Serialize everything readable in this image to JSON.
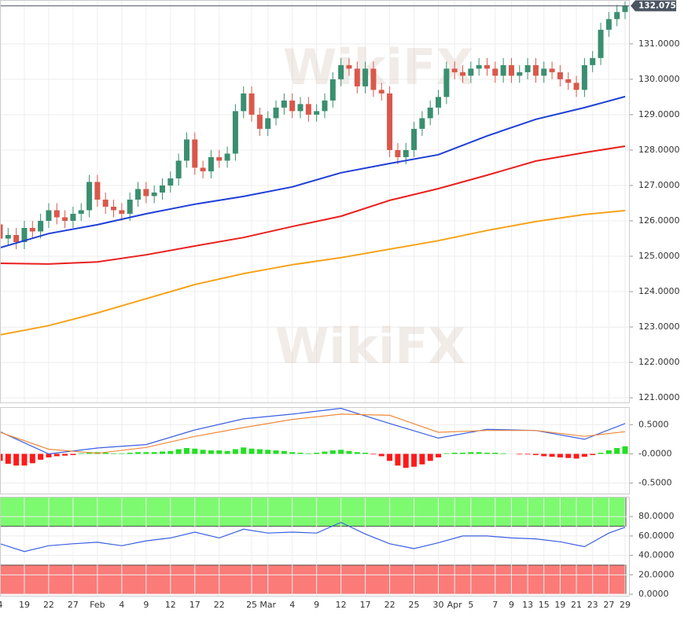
{
  "chart_data": [
    {
      "type": "candlestick",
      "open": [
        125.9,
        125.5,
        125.6,
        125.4,
        125.8,
        125.7,
        126.0,
        126.3,
        126.1,
        126.0,
        126.2,
        126.3,
        127.1,
        126.6,
        126.4,
        126.3,
        126.2,
        126.6,
        126.9,
        126.7,
        126.8,
        127.0,
        127.2,
        127.7,
        128.3,
        127.5,
        127.4,
        127.8,
        127.7,
        127.9,
        129.1,
        129.6,
        129.0,
        128.6,
        128.9,
        129.2,
        129.4,
        129.1,
        129.3,
        129.0,
        129.1,
        129.4,
        130.0,
        130.4,
        130.3,
        129.8,
        130.3,
        129.7,
        129.6,
        128.0,
        127.8,
        128.0,
        128.6,
        128.9,
        129.2,
        129.5,
        130.3,
        130.2,
        130.1,
        130.3,
        130.4,
        130.3,
        130.1,
        130.4,
        130.1,
        130.2,
        130.4,
        130.1,
        130.3,
        130.2,
        130.0,
        129.9,
        129.7,
        130.4,
        130.6,
        131.4,
        131.7,
        131.9
      ],
      "high": [
        126.1,
        125.8,
        125.8,
        126.0,
        126.0,
        126.2,
        126.5,
        126.5,
        126.3,
        126.4,
        126.5,
        127.3,
        127.3,
        126.8,
        126.6,
        126.5,
        126.8,
        127.1,
        127.1,
        127.0,
        127.2,
        127.4,
        127.9,
        128.5,
        128.5,
        127.7,
        128.0,
        128.0,
        128.1,
        129.3,
        129.8,
        129.8,
        129.2,
        129.1,
        129.4,
        129.6,
        129.6,
        129.5,
        129.5,
        129.3,
        129.6,
        130.2,
        130.6,
        130.6,
        130.5,
        130.5,
        130.5,
        129.9,
        129.8,
        128.2,
        128.2,
        128.8,
        129.1,
        129.4,
        129.7,
        130.5,
        130.5,
        130.4,
        130.5,
        130.6,
        130.6,
        130.5,
        130.6,
        130.6,
        130.4,
        130.6,
        130.6,
        130.5,
        130.5,
        130.4,
        130.2,
        130.1,
        130.6,
        130.8,
        131.6,
        131.9,
        132.1,
        132.2
      ],
      "low": [
        125.3,
        125.3,
        125.2,
        125.2,
        125.5,
        125.5,
        125.8,
        125.9,
        125.8,
        125.8,
        126.0,
        126.1,
        126.4,
        126.2,
        126.1,
        126.0,
        126.0,
        126.4,
        126.5,
        126.5,
        126.6,
        126.8,
        127.0,
        127.5,
        127.3,
        127.2,
        127.2,
        127.5,
        127.5,
        127.7,
        128.9,
        128.8,
        128.4,
        128.4,
        128.7,
        129.0,
        128.9,
        128.9,
        128.8,
        128.8,
        128.9,
        129.2,
        129.8,
        130.1,
        129.6,
        129.6,
        129.5,
        129.4,
        127.8,
        127.6,
        127.6,
        127.8,
        128.4,
        128.7,
        129.0,
        129.3,
        130.0,
        129.9,
        129.9,
        130.1,
        130.1,
        129.9,
        129.9,
        129.9,
        129.9,
        130.0,
        129.9,
        129.9,
        130.0,
        129.8,
        129.7,
        129.5,
        129.5,
        130.2,
        130.4,
        131.2,
        131.5,
        131.7
      ],
      "close": [
        125.5,
        125.6,
        125.4,
        125.8,
        125.7,
        126.0,
        126.3,
        126.1,
        126.0,
        126.2,
        126.3,
        127.1,
        126.6,
        126.4,
        126.3,
        126.2,
        126.6,
        126.9,
        126.7,
        126.8,
        127.0,
        127.2,
        127.7,
        128.3,
        127.5,
        127.4,
        127.8,
        127.7,
        127.9,
        129.1,
        129.6,
        129.0,
        128.6,
        128.9,
        129.2,
        129.4,
        129.1,
        129.3,
        129.0,
        129.1,
        129.4,
        130.0,
        130.4,
        130.3,
        129.8,
        130.3,
        129.7,
        129.6,
        128.0,
        127.8,
        128.0,
        128.6,
        128.9,
        129.2,
        129.5,
        130.3,
        130.2,
        130.1,
        130.3,
        130.4,
        130.3,
        130.1,
        130.4,
        130.1,
        130.2,
        130.4,
        130.1,
        130.3,
        130.2,
        130.0,
        129.9,
        129.7,
        130.4,
        130.6,
        131.4,
        131.7,
        131.9,
        132.07
      ],
      "up_color": "#3a8f70",
      "down_color": "#d9584b",
      "series": [
        {
          "color": "#1f3fd6",
          "x": [
            0,
            6,
            12,
            18,
            24,
            30,
            36,
            42,
            48,
            54,
            60,
            66,
            72,
            77
          ],
          "values": [
            125.24,
            125.64,
            125.89,
            126.2,
            126.47,
            126.69,
            126.96,
            127.36,
            127.62,
            127.87,
            128.4,
            128.87,
            129.2,
            129.51
          ]
        },
        {
          "color": "#e8201e",
          "x": [
            0,
            6,
            12,
            18,
            24,
            30,
            36,
            42,
            48,
            54,
            60,
            66,
            72,
            77
          ],
          "values": [
            124.8,
            124.78,
            124.84,
            125.04,
            125.29,
            125.53,
            125.84,
            126.13,
            126.58,
            126.91,
            127.29,
            127.69,
            127.93,
            128.11
          ]
        },
        {
          "color": "#f5a31a",
          "x": [
            0,
            6,
            12,
            18,
            24,
            30,
            36,
            42,
            48,
            54,
            60,
            66,
            72,
            77
          ],
          "values": [
            122.78,
            123.04,
            123.4,
            123.8,
            124.2,
            124.51,
            124.76,
            124.96,
            125.2,
            125.44,
            125.73,
            125.98,
            126.18,
            126.29
          ]
        }
      ],
      "ylim": [
        120.87,
        132.24
      ],
      "yticks": [
        {
          "value": 121,
          "label": "121.0000"
        },
        {
          "value": 122,
          "label": "122.0000"
        },
        {
          "value": 123,
          "label": "123.0000"
        },
        {
          "value": 124,
          "label": "124.0000"
        },
        {
          "value": 125,
          "label": "125.0000"
        },
        {
          "value": 126,
          "label": "126.0000"
        },
        {
          "value": 127,
          "label": "127.0000"
        },
        {
          "value": 128,
          "label": "128.0000"
        },
        {
          "value": 129,
          "label": "129.0000"
        },
        {
          "value": 130,
          "label": "130.0000"
        },
        {
          "value": 131,
          "label": "131.0000"
        }
      ],
      "last_price": {
        "value": 132.075,
        "label": "132.0750"
      },
      "grid": true,
      "watermark": "WikiFX"
    },
    {
      "type": "macd",
      "histogram": [
        -0.12,
        -0.17,
        -0.2,
        -0.2,
        -0.16,
        -0.1,
        -0.06,
        -0.04,
        -0.03,
        -0.02,
        0.01,
        0.03,
        0.03,
        0.02,
        0.01,
        0.01,
        0.02,
        0.03,
        0.03,
        0.03,
        0.04,
        0.05,
        0.08,
        0.1,
        0.09,
        0.07,
        0.06,
        0.06,
        0.05,
        0.08,
        0.11,
        0.09,
        0.08,
        0.07,
        0.06,
        0.05,
        0.03,
        0.02,
        0.01,
        0.02,
        0.04,
        0.06,
        0.07,
        0.05,
        0.03,
        0.02,
        -0.01,
        -0.04,
        -0.12,
        -0.2,
        -0.24,
        -0.22,
        -0.18,
        -0.12,
        -0.06,
        0.01,
        0.02,
        0.02,
        0.03,
        0.03,
        0.02,
        0.02,
        0.01,
        0.0,
        -0.01,
        -0.01,
        -0.02,
        -0.04,
        -0.05,
        -0.06,
        -0.07,
        -0.08,
        -0.05,
        -0.02,
        0.02,
        0.06,
        0.1,
        0.13
      ],
      "positive_color": "#22e022",
      "negative_color": "#ff1a1a",
      "series": [
        {
          "color": "#3a5fe0",
          "x": [
            0,
            6,
            12,
            18,
            24,
            30,
            36,
            42,
            48,
            54,
            60,
            66,
            72,
            77
          ],
          "values": [
            0.38,
            0.0,
            0.1,
            0.16,
            0.41,
            0.6,
            0.68,
            0.78,
            0.52,
            0.27,
            0.42,
            0.4,
            0.25,
            0.52
          ]
        },
        {
          "color": "#f08a3c",
          "x": [
            0,
            6,
            12,
            18,
            24,
            30,
            36,
            42,
            48,
            54,
            60,
            66,
            72,
            77
          ],
          "values": [
            0.37,
            0.08,
            0.01,
            0.11,
            0.3,
            0.45,
            0.59,
            0.68,
            0.66,
            0.37,
            0.4,
            0.4,
            0.3,
            0.38
          ]
        }
      ],
      "ylim": [
        -0.68,
        0.8
      ],
      "yticks": [
        {
          "value": 0.5,
          "label": "0.5000"
        },
        {
          "value": 0,
          "label": "-0.0000"
        },
        {
          "value": -0.5,
          "label": "-0.5000"
        }
      ]
    },
    {
      "type": "rsi",
      "series": [
        {
          "color": "#3a5fe0",
          "x": [
            0,
            3,
            6,
            9,
            12,
            15,
            18,
            21,
            24,
            27,
            30,
            33,
            36,
            39,
            42,
            45,
            48,
            51,
            54,
            57,
            60,
            63,
            66,
            69,
            72,
            75,
            77
          ],
          "values": [
            52,
            44,
            50,
            52,
            53.5,
            50,
            55,
            58,
            64,
            58,
            67,
            63,
            64,
            63,
            74,
            62,
            52,
            47,
            53,
            60,
            60,
            58,
            57,
            54,
            49,
            63,
            69
          ]
        }
      ],
      "bands": [
        {
          "from": 70,
          "to": 100,
          "color": "#7dfa70"
        },
        {
          "from": 0,
          "to": 30,
          "color": "#fb7b78"
        }
      ],
      "ylim": [
        -1.6,
        100.4
      ],
      "yticks": [
        {
          "value": 0,
          "label": "0.0000"
        },
        {
          "value": 20,
          "label": "20.0000"
        },
        {
          "value": 40,
          "label": "40.0000"
        },
        {
          "value": 60,
          "label": "60.0000"
        },
        {
          "value": 80,
          "label": "80.0000"
        }
      ],
      "categories": [
        "4",
        null,
        null,
        "19",
        null,
        null,
        "22",
        null,
        null,
        "27",
        null,
        null,
        "Feb",
        null,
        null,
        "4",
        null,
        null,
        "9",
        null,
        null,
        "12",
        null,
        null,
        "17",
        null,
        null,
        "22",
        null,
        null,
        null,
        "25",
        null,
        "Mar",
        null,
        null,
        "4",
        null,
        null,
        "9",
        null,
        null,
        "12",
        null,
        null,
        "17",
        null,
        null,
        "22",
        null,
        null,
        "25",
        null,
        null,
        "30",
        null,
        "Apr",
        null,
        "5",
        null,
        null,
        "7",
        null,
        "9",
        null,
        "13",
        null,
        "15",
        null,
        "19",
        null,
        "21",
        null,
        "23",
        null,
        "27",
        null,
        "29"
      ]
    }
  ]
}
